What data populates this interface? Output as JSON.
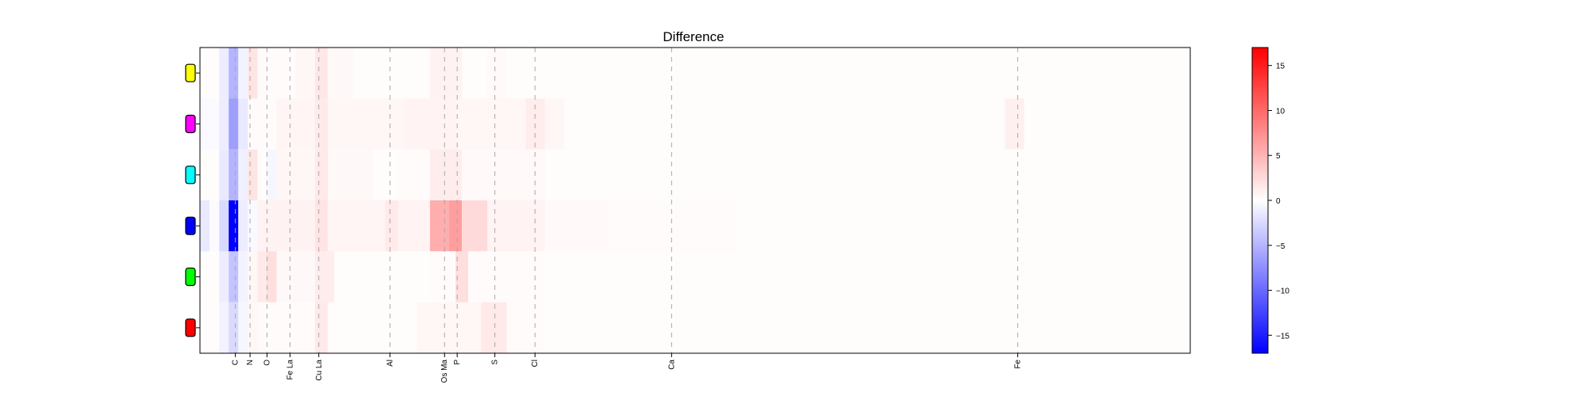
{
  "chart_data": {
    "type": "heatmap",
    "title": "Difference",
    "rows": [
      {
        "marker_color": "#ffff00"
      },
      {
        "marker_color": "#ff00ff"
      },
      {
        "marker_color": "#00ffff"
      },
      {
        "marker_color": "#0000ff"
      },
      {
        "marker_color": "#00ff00"
      },
      {
        "marker_color": "#ff0000"
      }
    ],
    "x_range": [
      0,
      7.75
    ],
    "element_lines": [
      {
        "label": "C",
        "energy": 0.277
      },
      {
        "label": "N",
        "energy": 0.392
      },
      {
        "label": "O",
        "energy": 0.525
      },
      {
        "label": "Fe La",
        "energy": 0.705
      },
      {
        "label": "Cu La",
        "energy": 0.93
      },
      {
        "label": "Al",
        "energy": 1.487
      },
      {
        "label": "Os Ma",
        "energy": 1.914
      },
      {
        "label": "P",
        "energy": 2.013
      },
      {
        "label": "S",
        "energy": 2.308
      },
      {
        "label": "Cl",
        "energy": 2.622
      },
      {
        "label": "Ca",
        "energy": 3.691
      },
      {
        "label": "Fe",
        "energy": 6.4
      }
    ],
    "colorbar": {
      "min": -17,
      "max": 17,
      "ticks": [
        -15,
        -10,
        -5,
        0,
        5,
        10,
        15
      ],
      "colors": {
        "negative": "#0000ff",
        "zero": "#ffffff",
        "positive": "#ff0000"
      }
    },
    "cells": [
      {
        "row": 0,
        "x0": 0.15,
        "x1": 0.225,
        "value": -1.2
      },
      {
        "row": 0,
        "x0": 0.225,
        "x1": 0.3,
        "value": -5
      },
      {
        "row": 0,
        "x0": 0.3,
        "x1": 0.375,
        "value": -0.8
      },
      {
        "row": 0,
        "x0": 0.375,
        "x1": 0.45,
        "value": 1.8
      },
      {
        "row": 0,
        "x0": 0.45,
        "x1": 0.75,
        "value": 0.3
      },
      {
        "row": 0,
        "x0": 0.75,
        "x1": 0.9,
        "value": 0.6
      },
      {
        "row": 0,
        "x0": 0.9,
        "x1": 1.0,
        "value": 1.6
      },
      {
        "row": 0,
        "x0": 1.0,
        "x1": 1.2,
        "value": 0.5
      },
      {
        "row": 0,
        "x0": 1.8,
        "x1": 2.05,
        "value": 0.9
      },
      {
        "row": 0,
        "x0": 2.25,
        "x1": 2.4,
        "value": 0.4
      },
      {
        "row": 1,
        "x0": 0.0,
        "x1": 0.075,
        "value": -0.4
      },
      {
        "row": 1,
        "x0": 0.075,
        "x1": 0.15,
        "value": -0.3
      },
      {
        "row": 1,
        "x0": 0.15,
        "x1": 0.225,
        "value": -1.2
      },
      {
        "row": 1,
        "x0": 0.225,
        "x1": 0.3,
        "value": -6.5
      },
      {
        "row": 1,
        "x0": 0.3,
        "x1": 0.375,
        "value": -1.5
      },
      {
        "row": 1,
        "x0": 0.375,
        "x1": 0.45,
        "value": 0.3
      },
      {
        "row": 1,
        "x0": 0.45,
        "x1": 0.6,
        "value": 0.3
      },
      {
        "row": 1,
        "x0": 0.6,
        "x1": 0.9,
        "value": 0.7
      },
      {
        "row": 1,
        "x0": 0.9,
        "x1": 1.0,
        "value": 1.4
      },
      {
        "row": 1,
        "x0": 1.0,
        "x1": 1.6,
        "value": 0.6
      },
      {
        "row": 1,
        "x0": 1.6,
        "x1": 2.0,
        "value": 0.8
      },
      {
        "row": 1,
        "x0": 2.0,
        "x1": 2.55,
        "value": 0.6
      },
      {
        "row": 1,
        "x0": 2.55,
        "x1": 2.7,
        "value": 1.3
      },
      {
        "row": 1,
        "x0": 2.7,
        "x1": 2.85,
        "value": 0.6
      },
      {
        "row": 1,
        "x0": 6.3,
        "x1": 6.45,
        "value": 1.0
      },
      {
        "row": 2,
        "x0": 0.15,
        "x1": 0.225,
        "value": -1.5
      },
      {
        "row": 2,
        "x0": 0.225,
        "x1": 0.3,
        "value": -5
      },
      {
        "row": 2,
        "x0": 0.3,
        "x1": 0.375,
        "value": -1
      },
      {
        "row": 2,
        "x0": 0.375,
        "x1": 0.45,
        "value": 1.8
      },
      {
        "row": 2,
        "x0": 0.45,
        "x1": 0.52,
        "value": 0.2
      },
      {
        "row": 2,
        "x0": 0.52,
        "x1": 0.6,
        "value": -0.6
      },
      {
        "row": 2,
        "x0": 0.6,
        "x1": 0.9,
        "value": 0.6
      },
      {
        "row": 2,
        "x0": 0.9,
        "x1": 1.0,
        "value": 1.5
      },
      {
        "row": 2,
        "x0": 1.0,
        "x1": 1.35,
        "value": 0.5
      },
      {
        "row": 2,
        "x0": 1.55,
        "x1": 1.8,
        "value": 0.3
      },
      {
        "row": 2,
        "x0": 1.8,
        "x1": 2.05,
        "value": 1.2
      },
      {
        "row": 2,
        "x0": 2.05,
        "x1": 2.7,
        "value": 0.4
      },
      {
        "row": 3,
        "x0": 0.0,
        "x1": 0.075,
        "value": -1.5
      },
      {
        "row": 3,
        "x0": 0.075,
        "x1": 0.15,
        "value": -0.3
      },
      {
        "row": 3,
        "x0": 0.15,
        "x1": 0.225,
        "value": -2.5
      },
      {
        "row": 3,
        "x0": 0.225,
        "x1": 0.3,
        "value": -17
      },
      {
        "row": 3,
        "x0": 0.3,
        "x1": 0.375,
        "value": -1.2
      },
      {
        "row": 3,
        "x0": 0.375,
        "x1": 0.45,
        "value": -0.4
      },
      {
        "row": 3,
        "x0": 0.45,
        "x1": 0.9,
        "value": 0.9
      },
      {
        "row": 3,
        "x0": 0.9,
        "x1": 1.0,
        "value": 1.8
      },
      {
        "row": 3,
        "x0": 1.0,
        "x1": 1.45,
        "value": 0.7
      },
      {
        "row": 3,
        "x0": 1.45,
        "x1": 1.55,
        "value": 1.5
      },
      {
        "row": 3,
        "x0": 1.55,
        "x1": 1.8,
        "value": 0.8
      },
      {
        "row": 3,
        "x0": 1.8,
        "x1": 1.95,
        "value": 5.5
      },
      {
        "row": 3,
        "x0": 1.95,
        "x1": 2.05,
        "value": 6.5
      },
      {
        "row": 3,
        "x0": 2.05,
        "x1": 2.25,
        "value": 2.5
      },
      {
        "row": 3,
        "x0": 2.25,
        "x1": 2.7,
        "value": 0.8
      },
      {
        "row": 3,
        "x0": 2.7,
        "x1": 3.2,
        "value": 0.4
      },
      {
        "row": 3,
        "x0": 3.2,
        "x1": 4.2,
        "value": 0.25
      },
      {
        "row": 4,
        "x0": 0.15,
        "x1": 0.225,
        "value": -1.2
      },
      {
        "row": 4,
        "x0": 0.225,
        "x1": 0.3,
        "value": -4
      },
      {
        "row": 4,
        "x0": 0.3,
        "x1": 0.375,
        "value": -0.8
      },
      {
        "row": 4,
        "x0": 0.375,
        "x1": 0.45,
        "value": 0.6
      },
      {
        "row": 4,
        "x0": 0.45,
        "x1": 0.52,
        "value": 1.5
      },
      {
        "row": 4,
        "x0": 0.52,
        "x1": 0.6,
        "value": 2.2
      },
      {
        "row": 4,
        "x0": 0.6,
        "x1": 0.9,
        "value": 0.5
      },
      {
        "row": 4,
        "x0": 0.9,
        "x1": 1.05,
        "value": 1.3
      },
      {
        "row": 4,
        "x0": 1.8,
        "x1": 2.0,
        "value": 0.3
      },
      {
        "row": 4,
        "x0": 2.0,
        "x1": 2.1,
        "value": 2.2
      },
      {
        "row": 4,
        "x0": 2.1,
        "x1": 2.7,
        "value": 0.3
      },
      {
        "row": 5,
        "x0": 0.15,
        "x1": 0.225,
        "value": -0.8
      },
      {
        "row": 5,
        "x0": 0.225,
        "x1": 0.3,
        "value": -2.5
      },
      {
        "row": 5,
        "x0": 0.3,
        "x1": 0.375,
        "value": -0.6
      },
      {
        "row": 5,
        "x0": 0.375,
        "x1": 0.45,
        "value": 0.6
      },
      {
        "row": 5,
        "x0": 0.45,
        "x1": 0.9,
        "value": 0.3
      },
      {
        "row": 5,
        "x0": 0.9,
        "x1": 1.0,
        "value": 1.5
      },
      {
        "row": 5,
        "x0": 1.0,
        "x1": 1.3,
        "value": 0.2
      },
      {
        "row": 5,
        "x0": 1.7,
        "x1": 2.2,
        "value": 0.6
      },
      {
        "row": 5,
        "x0": 2.2,
        "x1": 2.4,
        "value": 1.5
      },
      {
        "row": 5,
        "x0": 2.4,
        "x1": 2.7,
        "value": 0.3
      }
    ]
  }
}
